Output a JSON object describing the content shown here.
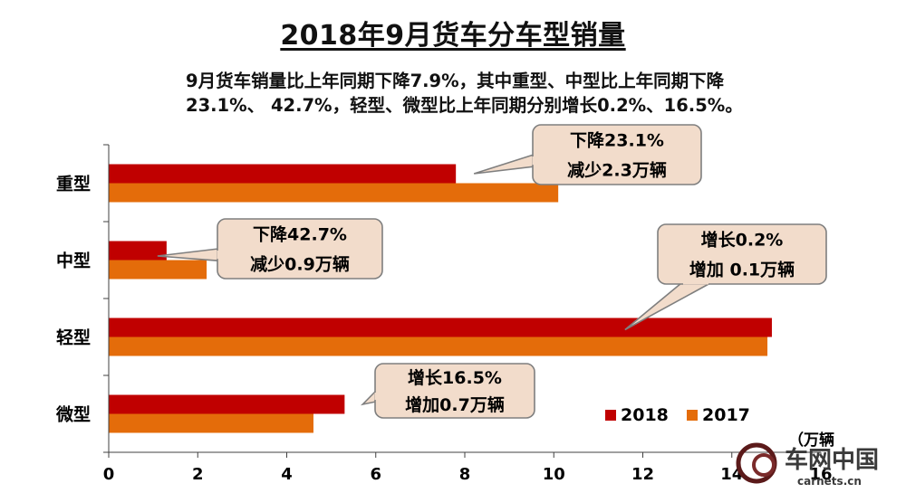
{
  "chart_data": {
    "type": "bar",
    "orientation": "horizontal",
    "title": "2018年9月货车分车型销量",
    "subtitle_lines": [
      "9月货车销量比上年同期下降7.9%，其中重型、中型比上年同期下降",
      "23.1%、 42.7%，轻型、微型比上年同期分别增长0.2%、16.5%。"
    ],
    "categories": [
      "重型",
      "中型",
      "轻型",
      "微型"
    ],
    "series": [
      {
        "name": "2018",
        "color": "#C00000",
        "values": [
          7.8,
          1.3,
          14.9,
          5.3
        ]
      },
      {
        "name": "2017",
        "color": "#E46C0A",
        "values": [
          10.1,
          2.2,
          14.8,
          4.6
        ]
      }
    ],
    "xlim": [
      0,
      16
    ],
    "x_ticks": [
      "0",
      "2",
      "4",
      "6",
      "8",
      "10",
      "12",
      "14",
      "16"
    ],
    "unit_label": "（万辆",
    "legend_position": "bottom-right",
    "grid": false,
    "annotations": [
      {
        "category": "重型",
        "lines": [
          "下降23.1%",
          "减少2.3万辆"
        ]
      },
      {
        "category": "中型",
        "lines": [
          "下降42.7%",
          "减少0.9万辆"
        ]
      },
      {
        "category": "轻型",
        "lines": [
          "增长0.2%",
          "增加 0.1万辆"
        ]
      },
      {
        "category": "微型",
        "lines": [
          "增长16.5%",
          "增加0.7万辆"
        ]
      }
    ]
  },
  "watermark": {
    "brand": "车网中国",
    "url": "carnets.cn"
  },
  "colors": {
    "callout_fill": "#F2DCCB",
    "callout_stroke": "#7F7F7F",
    "axis": "#404040"
  }
}
